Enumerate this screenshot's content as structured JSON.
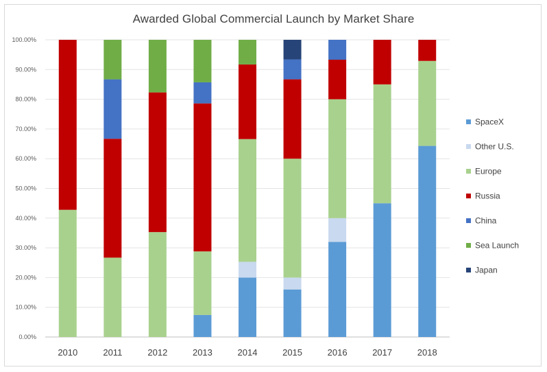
{
  "chart_data": {
    "type": "bar",
    "stacked": true,
    "title": "Awarded Global Commercial Launch by Market Share",
    "xlabel": "",
    "ylabel": "",
    "ylim": [
      0,
      100
    ],
    "grid": true,
    "legend_position": "right",
    "y_ticks": [
      "0.00%",
      "10.00%",
      "20.00%",
      "30.00%",
      "40.00%",
      "50.00%",
      "60.00%",
      "70.00%",
      "80.00%",
      "90.00%",
      "100.00%"
    ],
    "categories": [
      "2010",
      "2011",
      "2012",
      "2013",
      "2014",
      "2015",
      "2016",
      "2017",
      "2018"
    ],
    "series": [
      {
        "name": "SpaceX",
        "color": "#5b9bd5",
        "values": [
          0,
          0,
          0,
          7.4,
          20,
          16,
          32,
          45,
          64.3
        ]
      },
      {
        "name": "Other U.S.",
        "color": "#c9d9ef",
        "values": [
          0,
          0,
          0,
          0,
          5.3,
          4,
          8,
          0,
          0
        ]
      },
      {
        "name": "Europe",
        "color": "#a9d18e",
        "values": [
          42.8,
          26.7,
          35.3,
          21.4,
          41.3,
          40,
          40,
          40,
          28.6
        ]
      },
      {
        "name": "Russia",
        "color": "#c00000",
        "values": [
          57.2,
          40,
          47,
          49.8,
          25.1,
          26.7,
          13.3,
          15,
          7.1
        ]
      },
      {
        "name": "China",
        "color": "#4472c4",
        "values": [
          0,
          20,
          0,
          7.1,
          0,
          6.7,
          6.7,
          0,
          0
        ]
      },
      {
        "name": "Sea Launch",
        "color": "#70ad47",
        "values": [
          0,
          13.3,
          17.7,
          14.3,
          8.3,
          0,
          0,
          0,
          0
        ]
      },
      {
        "name": "Japan",
        "color": "#264478",
        "values": [
          0,
          0,
          0,
          0,
          0,
          6.6,
          0,
          0,
          0
        ]
      }
    ]
  }
}
